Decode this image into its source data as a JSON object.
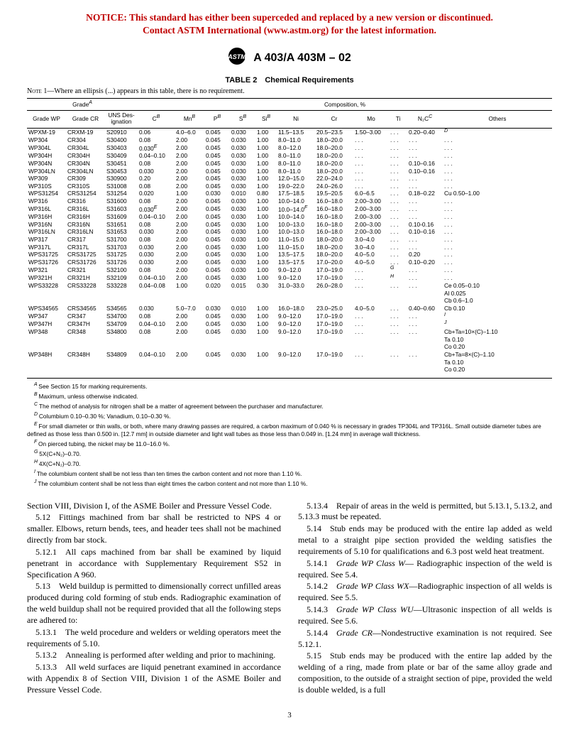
{
  "notice": {
    "line1": "NOTICE: This standard has either been superceded and replaced by a new version or discontinued.",
    "line2": "Contact ASTM International (www.astm.org) for the latest information."
  },
  "designation": "A 403/A 403M – 02",
  "table": {
    "caption": "TABLE 2 Chemical Requirements",
    "note_label": "Note",
    "note_num": "1",
    "note_text": "—Where an ellipsis (...) appears in this table, there is no requirement.",
    "head_grade": "Grade",
    "head_grade_sup": "A",
    "head_comp": "Composition, %",
    "h_gradewp": "Grade WP",
    "h_gradecr": "Grade CR",
    "h_uns": "UNS Des-\nignation",
    "h_c": "C",
    "h_c_sup": "B",
    "h_mn": "Mn",
    "h_mn_sup": "B",
    "h_p": "P",
    "h_p_sup": "B",
    "h_s": "S",
    "h_s_sup": "B",
    "h_si": "Si",
    "h_si_sup": "B",
    "h_ni": "Ni",
    "h_cr": "Cr",
    "h_mo": "Mo",
    "h_ti": "Ti",
    "h_n2c": "N₂C",
    "h_n2c_sup": "C",
    "h_others": "Others",
    "rows": [
      {
        "wp": "WPXM-19",
        "cr": "CRXM-19",
        "uns": "S20910",
        "c": "0.06",
        "mn": "4.0–6.0",
        "p": "0.045",
        "s": "0.030",
        "si": "1.00",
        "ni": "11.5–13.5",
        "crv": "20.5–23.5",
        "mo": "1.50–3.00",
        "ti": ". . .",
        "n2c": "0.20–0.40",
        "n2c_sup": "",
        "oth": "",
        "oth_sup": "D"
      },
      {
        "wp": "WP304",
        "cr": "CR304",
        "uns": "S30400",
        "c": "0.08",
        "mn": "2.00",
        "p": "0.045",
        "s": "0.030",
        "si": "1.00",
        "ni": "8.0–11.0",
        "crv": "18.0–20.0",
        "mo": ". . .",
        "ti": ". . .",
        "n2c": ". . .",
        "oth": ". . ."
      },
      {
        "wp": "WP304L",
        "cr": "CR304L",
        "uns": "S30403",
        "c": "0.030",
        "c_sup": "E",
        "mn": "2.00",
        "p": "0.045",
        "s": "0.030",
        "si": "1.00",
        "ni": "8.0–12.0",
        "crv": "18.0–20.0",
        "mo": ". . .",
        "ti": ". . .",
        "n2c": ". . .",
        "oth": ". . ."
      },
      {
        "wp": "WP304H",
        "cr": "CR304H",
        "uns": "S30409",
        "c": "0.04–0.10",
        "mn": "2.00",
        "p": "0.045",
        "s": "0.030",
        "si": "1.00",
        "ni": "8.0–11.0",
        "crv": "18.0–20.0",
        "mo": ". . .",
        "ti": ". . .",
        "n2c": ". . .",
        "oth": ". . ."
      },
      {
        "wp": "WP304N",
        "cr": "CR304N",
        "uns": "S30451",
        "c": "0.08",
        "mn": "2.00",
        "p": "0.045",
        "s": "0.030",
        "si": "1.00",
        "ni": "8.0–11.0",
        "crv": "18.0–20.0",
        "mo": ". . .",
        "ti": ". . .",
        "n2c": "0.10–0.16",
        "oth": ". . ."
      },
      {
        "wp": "WP304LN",
        "cr": "CR304LN",
        "uns": "S30453",
        "c": "0.030",
        "mn": "2.00",
        "p": "0.045",
        "s": "0.030",
        "si": "1.00",
        "ni": "8.0–11.0",
        "crv": "18.0–20.0",
        "mo": ". . .",
        "ti": ". . .",
        "n2c": "0.10–0.16",
        "oth": ". . ."
      },
      {
        "wp": "WP309",
        "cr": "CR309",
        "uns": "S30900",
        "c": "0.20",
        "mn": "2.00",
        "p": "0.045",
        "s": "0.030",
        "si": "1.00",
        "ni": "12.0–15.0",
        "crv": "22.0–24.0",
        "mo": ". . .",
        "ti": ". . .",
        "n2c": ". . .",
        "oth": ". . ."
      },
      {
        "wp": "WP310S",
        "cr": "CR310S",
        "uns": "S31008",
        "c": "0.08",
        "mn": "2.00",
        "p": "0.045",
        "s": "0.030",
        "si": "1.00",
        "ni": "19.0–22.0",
        "crv": "24.0–26.0",
        "mo": ". . .",
        "ti": ". . .",
        "n2c": ". . .",
        "oth": ". . ."
      },
      {
        "wp": "WPS31254",
        "cr": "CRS31254",
        "uns": "S31254",
        "c": "0.020",
        "mn": "1.00",
        "p": "0.030",
        "s": "0.010",
        "si": "0.80",
        "ni": "17.5–18.5",
        "crv": "19.5–20.5",
        "mo": "6.0–6.5",
        "ti": ". . .",
        "n2c": "0.18–0.22",
        "oth": "Cu 0.50–1.00"
      },
      {
        "wp": "WP316",
        "cr": "CR316",
        "uns": "S31600",
        "c": "0.08",
        "mn": "2.00",
        "p": "0.045",
        "s": "0.030",
        "si": "1.00",
        "ni": "10.0–14.0",
        "crv": "16.0–18.0",
        "mo": "2.00–3.00",
        "ti": ". . .",
        "n2c": ". . .",
        "oth": ". . ."
      },
      {
        "wp": "WP316L",
        "cr": "CR316L",
        "uns": "S31603",
        "c": "0.030",
        "c_sup": "E",
        "mn": "2.00",
        "p": "0.045",
        "s": "0.030",
        "si": "1.00",
        "ni": "10.0–14.0",
        "ni_sup": "F",
        "crv": "16.0–18.0",
        "mo": "2.00–3.00",
        "ti": ". . .",
        "n2c": ". . .",
        "oth": ". . ."
      },
      {
        "wp": "WP316H",
        "cr": "CR316H",
        "uns": "S31609",
        "c": "0.04–0.10",
        "mn": "2.00",
        "p": "0.045",
        "s": "0.030",
        "si": "1.00",
        "ni": "10.0–14.0",
        "crv": "16.0–18.0",
        "mo": "2.00–3.00",
        "ti": ". . .",
        "n2c": ". . .",
        "oth": ". . ."
      },
      {
        "wp": "WP316N",
        "cr": "CR316N",
        "uns": "S31651",
        "c": "0.08",
        "mn": "2.00",
        "p": "0.045",
        "s": "0.030",
        "si": "1.00",
        "ni": "10.0–13.0",
        "crv": "16.0–18.0",
        "mo": "2.00–3.00",
        "ti": ". . .",
        "n2c": "0.10-0.16",
        "oth": ". . ."
      },
      {
        "wp": "WP316LN",
        "cr": "CR316LN",
        "uns": "S31653",
        "c": "0.030",
        "mn": "2.00",
        "p": "0.045",
        "s": "0.030",
        "si": "1.00",
        "ni": "10.0–13.0",
        "crv": "16.0–18.0",
        "mo": "2.00–3.00",
        "ti": ". . .",
        "n2c": "0.10–0.16",
        "oth": ". . ."
      },
      {
        "wp": "WP317",
        "cr": "CR317",
        "uns": "S31700",
        "c": "0.08",
        "mn": "2.00",
        "p": "0.045",
        "s": "0.030",
        "si": "1.00",
        "ni": "11.0–15.0",
        "crv": "18.0–20.0",
        "mo": "3.0–4.0",
        "ti": ". . .",
        "n2c": ". . .",
        "oth": ". . ."
      },
      {
        "wp": "WP317L",
        "cr": "CR317L",
        "uns": "S31703",
        "c": "0.030",
        "mn": "2.00",
        "p": "0.045",
        "s": "0.030",
        "si": "1.00",
        "ni": "11.0–15.0",
        "crv": "18.0–20.0",
        "mo": "3.0–4.0",
        "ti": ". . .",
        "n2c": ". . .",
        "oth": ". . ."
      },
      {
        "wp": "WPS31725",
        "cr": "CRS31725",
        "uns": "S31725",
        "c": "0.030",
        "mn": "2.00",
        "p": "0.045",
        "s": "0.030",
        "si": "1.00",
        "ni": "13.5–17.5",
        "crv": "18.0–20.0",
        "mo": "4.0–5.0",
        "ti": ". . .",
        "n2c": "0.20",
        "oth": ". . ."
      },
      {
        "wp": "WPS31726",
        "cr": "CRS31726",
        "uns": "S31726",
        "c": "0.030",
        "mn": "2.00",
        "p": "0.045",
        "s": "0.030",
        "si": "1.00",
        "ni": "13.5–17.5",
        "crv": "17.0–20.0",
        "mo": "4.0–5.0",
        "ti": ". . .",
        "n2c": "0.10–0.20",
        "oth": ". . ."
      },
      {
        "wp": "WP321",
        "cr": "CR321",
        "uns": "S32100",
        "c": "0.08",
        "mn": "2.00",
        "p": "0.045",
        "s": "0.030",
        "si": "1.00",
        "ni": "9.0–12.0",
        "crv": "17.0–19.0",
        "mo": ". . .",
        "ti": "",
        "ti_sup": "G",
        "n2c": ". . .",
        "oth": ". . ."
      },
      {
        "wp": "WP321H",
        "cr": "CR321H",
        "uns": "S32109",
        "c": "0.04–0.10",
        "mn": "2.00",
        "p": "0.045",
        "s": "0.030",
        "si": "1.00",
        "ni": "9.0–12.0",
        "crv": "17.0–19.0",
        "mo": ". . .",
        "ti": "",
        "ti_sup": "H",
        "n2c": ". . .",
        "oth": ". . ."
      },
      {
        "wp": "WPS33228",
        "cr": "CRS33228",
        "uns": "S33228",
        "c": "0.04–0.08",
        "mn": "1.00",
        "p": "0.020",
        "s": "0.015",
        "si": "0.30",
        "ni": "31.0–33.0",
        "crv": "26.0–28.0",
        "mo": ". . .",
        "ti": ". . .",
        "n2c": ". . .",
        "oth": "Ce 0.05–0.10",
        "extra": [
          "Al 0.025",
          "Cb 0.6–1.0"
        ]
      },
      {
        "wp": "WPS34565",
        "cr": "CRS34565",
        "uns": "S34565",
        "c": "0.030",
        "mn": "5.0–7.0",
        "p": "0.030",
        "s": "0.010",
        "si": "1.00",
        "ni": "16.0–18.0",
        "crv": "23.0–25.0",
        "mo": "4.0–5.0",
        "ti": ". . .",
        "n2c": "0.40–0.60",
        "oth": "Cb 0.10"
      },
      {
        "wp": "WP347",
        "cr": "CR347",
        "uns": "S34700",
        "c": "0.08",
        "mn": "2.00",
        "p": "0.045",
        "s": "0.030",
        "si": "1.00",
        "ni": "9.0–12.0",
        "crv": "17.0–19.0",
        "mo": ". . .",
        "ti": ". . .",
        "n2c": ". . .",
        "oth": "",
        "oth_sup": "I"
      },
      {
        "wp": "WP347H",
        "cr": "CR347H",
        "uns": "S34709",
        "c": "0.04–0.10",
        "mn": "2.00",
        "p": "0.045",
        "s": "0.030",
        "si": "1.00",
        "ni": "9.0–12.0",
        "crv": "17.0–19.0",
        "mo": ". . .",
        "ti": ". . .",
        "n2c": ". . .",
        "oth": "",
        "oth_sup": "J"
      },
      {
        "wp": "WP348",
        "cr": "CR348",
        "uns": "S34800",
        "c": "0.08",
        "mn": "2.00",
        "p": "0.045",
        "s": "0.030",
        "si": "1.00",
        "ni": "9.0–12.0",
        "crv": "17.0–19.0",
        "mo": ". . .",
        "ti": ". . .",
        "n2c": ". . .",
        "oth": "Cb+Ta=10×(C)–1.10",
        "extra": [
          "Ta 0.10",
          "Co 0.20"
        ]
      },
      {
        "wp": "WP348H",
        "cr": "CR348H",
        "uns": "S34809",
        "c": "0.04–0.10",
        "mn": "2.00",
        "p": "0.045",
        "s": "0.030",
        "si": "1.00",
        "ni": "9.0–12.0",
        "crv": "17.0–19.0",
        "mo": ". . .",
        "ti": ". . .",
        "n2c": ". . .",
        "oth": "Cb+Ta=8×(C)–1.10",
        "extra": [
          "Ta 0.10",
          "Co 0.20"
        ]
      }
    ]
  },
  "footnotes": {
    "A": "See Section 15 for marking requirements.",
    "B": "Maximum, unless otherwise indicated.",
    "C": "The method of analysis for nitrogen shall be a matter of agreement between the purchaser and manufacturer.",
    "D": "Columbium 0.10–0.30 %; Vanadium, 0.10–0.30 %.",
    "E": "For small diameter or thin walls, or both, where many drawing passes are required, a carbon maximum of 0.040 % is necessary in grades TP304L and TP316L. Small outside diameter tubes are defined as those less than 0.500 in. [12.7 mm] in outside diameter and light wall tubes as those less than 0.049 in. [1.24 mm] in average wall thickness.",
    "F": "On pierced tubing, the nickel may be 11.0–16.0 %.",
    "G": "5X(C+N₂)–0.70.",
    "H": "4X(C+N₂)–0.70.",
    "I": "The columbium content shall be not less than ten times the carbon content and not more than 1.10 %.",
    "J": "The columbium content shall be not less than eight times the carbon content and not more than 1.10 %."
  },
  "body": {
    "p0": "Section VIII, Division I, of the ASME Boiler and Pressure Vessel Code.",
    "p1": "5.12 Fittings machined from bar shall be restricted to NPS 4 or smaller. Elbows, return bends, tees, and header tees shall not be machined directly from bar stock.",
    "p2": "5.12.1 All caps machined from bar shall be examined by liquid penetrant in accordance with Supplementary Requirement S52 in Specification A 960.",
    "p3": "5.13 Weld buildup is permitted to dimensionally correct unfilled areas produced during cold forming of stub ends. Radiographic examination of the weld buildup shall not be required provided that all the following steps are adhered to:",
    "p4": "5.13.1 The weld procedure and welders or welding operators meet the requirements of 5.10.",
    "p5": "5.13.2 Annealing is performed after welding and prior to machining.",
    "p6": "5.13.3 All weld surfaces are liquid penetrant examined in accordance with Appendix 8 of Section VIII, Division 1 of the ASME Boiler and Pressure Vessel Code.",
    "p7": "5.13.4 Repair of areas in the weld is permitted, but 5.13.1, 5.13.2, and 5.13.3 must be repeated.",
    "p8": "5.14 Stub ends may be produced with the entire lap added as weld metal to a straight pipe section provided the welding satisfies the requirements of 5.10 for qualifications and 6.3 post weld heat treatment.",
    "p9a": "5.14.1 ",
    "p9b": "Grade WP Class W",
    "p9c": "— Radiographic inspection of the weld is required. See 5.4.",
    "p10a": "5.14.2 ",
    "p10b": "Grade WP Class WX",
    "p10c": "—Radiographic inspection of all welds is required. See 5.5.",
    "p11a": "5.14.3 ",
    "p11b": "Grade WP Class WU",
    "p11c": "—Ultrasonic inspection of all welds is required. See 5.6.",
    "p12a": "5.14.4 ",
    "p12b": "Grade CR",
    "p12c": "—Nondestructive examination is not required. See 5.12.1.",
    "p13": "5.15 Stub ends may be produced with the entire lap added by the welding of a ring, made from plate or bar of the same alloy grade and composition, to the outside of a straight section of pipe, provided the weld is double welded, is a full"
  },
  "pagenum": "3"
}
